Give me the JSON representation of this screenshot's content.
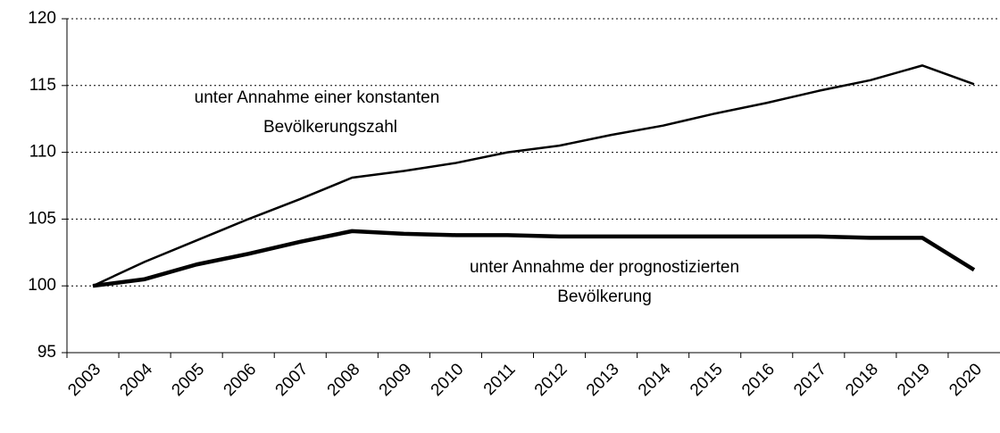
{
  "chart_data": {
    "type": "line",
    "categories": [
      "2003",
      "2004",
      "2005",
      "2006",
      "2007",
      "2008",
      "2009",
      "2010",
      "2011",
      "2012",
      "2013",
      "2014",
      "2015",
      "2016",
      "2017",
      "2018",
      "2019",
      "2020"
    ],
    "series": [
      {
        "color": "#000000",
        "width": 2.5,
        "values": [
          100,
          101.8,
          103.4,
          105.0,
          106.5,
          108.1,
          108.6,
          109.2,
          110.0,
          110.5,
          111.3,
          112.0,
          112.9,
          113.7,
          114.6,
          115.4,
          116.5,
          115.1
        ]
      },
      {
        "color": "#000000",
        "width": 4.5,
        "values": [
          100,
          100.5,
          101.6,
          102.4,
          103.3,
          104.1,
          103.9,
          103.8,
          103.8,
          103.7,
          103.7,
          103.7,
          103.7,
          103.7,
          103.7,
          103.6,
          103.6,
          101.2
        ]
      }
    ],
    "annotations": [
      "unter Annahme einer konstanten",
      "Bevölkerungszahl",
      "unter Annahme der prognostizierten",
      "Bevölkerung"
    ],
    "ylim": [
      95,
      120
    ],
    "yticks": [
      95,
      100,
      105,
      110,
      115,
      120
    ],
    "grid": true
  }
}
